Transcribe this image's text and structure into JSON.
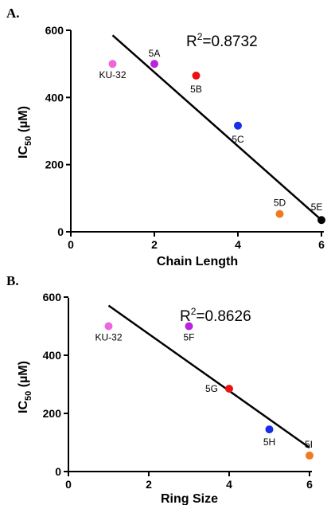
{
  "chart_data": [
    {
      "panel": "A.",
      "type": "scatter",
      "xlabel": "Chain Length",
      "ylabel_main": "IC",
      "ylabel_sub": "50",
      "ylabel_unit": " (µM)",
      "xlim": [
        0,
        6
      ],
      "ylim": [
        0,
        600
      ],
      "xticks": [
        "0",
        "2",
        "4",
        "6"
      ],
      "yticks": [
        "0",
        "200",
        "400",
        "600"
      ],
      "annotation_main": "R",
      "annotation_sup": "2",
      "annotation_rest": "=0.8732",
      "fit_line": [
        {
          "x": 1,
          "y": 585
        },
        {
          "x": 6,
          "y": 35
        }
      ],
      "points": [
        {
          "label": "KU-32",
          "x": 1,
          "y": 500,
          "color": "#ee66dd"
        },
        {
          "label": "5A",
          "x": 2,
          "y": 500,
          "color": "#bb22dd"
        },
        {
          "label": "5B",
          "x": 3,
          "y": 465,
          "color": "#ee1111"
        },
        {
          "label": "5C",
          "x": 4,
          "y": 316,
          "color": "#1a2ee8"
        },
        {
          "label": "5D",
          "x": 5,
          "y": 53,
          "color": "#f07a22"
        },
        {
          "label": "5E",
          "x": 6,
          "y": 35,
          "color": "#000000"
        }
      ]
    },
    {
      "panel": "B.",
      "type": "scatter",
      "xlabel": "Ring Size",
      "ylabel_main": "IC",
      "ylabel_sub": "50",
      "ylabel_unit": " (µM)",
      "xlim": [
        0,
        6
      ],
      "ylim": [
        0,
        600
      ],
      "xticks": [
        "0",
        "2",
        "4",
        "6"
      ],
      "yticks": [
        "0",
        "200",
        "400",
        "600"
      ],
      "annotation_main": "R",
      "annotation_sup": "2",
      "annotation_rest": "=0.8626",
      "fit_line": [
        {
          "x": 1,
          "y": 571
        },
        {
          "x": 6,
          "y": 82
        }
      ],
      "points": [
        {
          "label": "KU-32",
          "x": 1,
          "y": 500,
          "color": "#ee66dd"
        },
        {
          "label": "5F",
          "x": 3,
          "y": 500,
          "color": "#bb22dd"
        },
        {
          "label": "5G",
          "x": 4,
          "y": 285,
          "color": "#ee1111"
        },
        {
          "label": "5H",
          "x": 5,
          "y": 145,
          "color": "#1a2ee8"
        },
        {
          "label": "5I",
          "x": 6,
          "y": 55,
          "color": "#f07a22"
        }
      ]
    }
  ]
}
